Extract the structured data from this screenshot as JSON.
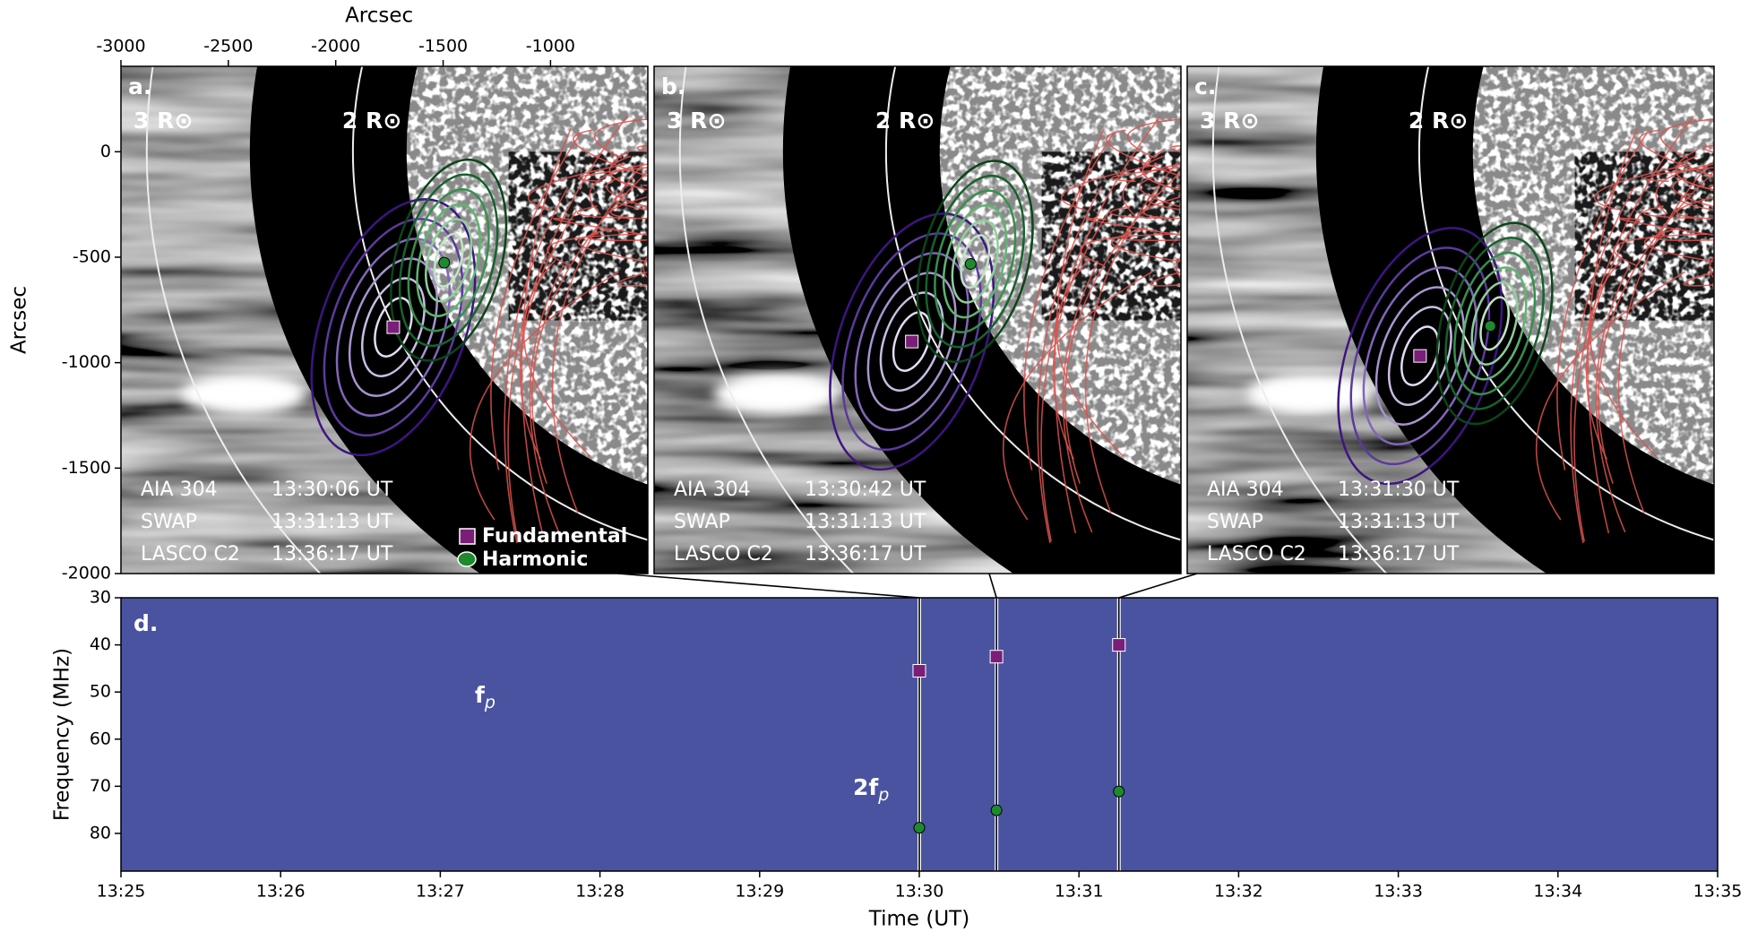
{
  "chart_data": [
    {
      "type": "image",
      "panel_label": "a.",
      "xlabel": "Arcsec",
      "ylabel": "Arcsec",
      "xlim": [
        -3000,
        -547
      ],
      "ylim": [
        -2000,
        405
      ],
      "xticks": [
        -3000,
        -2500,
        -2000,
        -1500,
        -1000
      ],
      "yticks": [
        0,
        -500,
        -1000,
        -1500,
        -2000
      ],
      "annotations": [
        "3 R⊙",
        "2 R⊙"
      ],
      "instruments": [
        [
          "AIA 304",
          "13:30:06 UT"
        ],
        [
          "SWAP",
          "13:31:13 UT"
        ],
        [
          "LASCO C2",
          "13:36:17 UT"
        ]
      ],
      "series": [
        {
          "name": "Fundamental",
          "color": "#7a1e78",
          "marker": "square",
          "x": [
            -1732
          ],
          "values": [
            -832
          ]
        },
        {
          "name": "Harmonic",
          "color": "#1e8a2e",
          "marker": "circle",
          "x": [
            -1495
          ],
          "values": [
            -526
          ]
        }
      ]
    },
    {
      "type": "image",
      "panel_label": "b.",
      "xlim": [
        -3000,
        -547
      ],
      "ylim": [
        -2000,
        405
      ],
      "annotations": [
        "3 R⊙",
        "2 R⊙"
      ],
      "instruments": [
        [
          "AIA 304",
          "13:30:42 UT"
        ],
        [
          "SWAP",
          "13:31:13 UT"
        ],
        [
          "LASCO C2",
          "13:36:17 UT"
        ]
      ],
      "series": [
        {
          "color": "#7a1e78",
          "marker": "square",
          "x": [
            -1800
          ],
          "values": [
            -900
          ]
        },
        {
          "color": "#1e8a2e",
          "marker": "circle",
          "x": [
            -1526
          ],
          "values": [
            -532
          ]
        }
      ]
    },
    {
      "type": "image",
      "panel_label": "c.",
      "xlim": [
        -3000,
        -547
      ],
      "ylim": [
        -2000,
        405
      ],
      "annotations": [
        "3 R⊙",
        "2 R⊙"
      ],
      "instruments": [
        [
          "AIA 304",
          "13:31:30 UT"
        ],
        [
          "SWAP",
          "13:31:13 UT"
        ],
        [
          "LASCO C2",
          "13:36:17 UT"
        ]
      ],
      "series": [
        {
          "color": "#7a1e78",
          "marker": "square",
          "x": [
            -1916
          ],
          "values": [
            -968
          ]
        },
        {
          "color": "#1e8a2e",
          "marker": "circle",
          "x": [
            -1589
          ],
          "values": [
            -826
          ]
        }
      ]
    },
    {
      "type": "spectrogram",
      "panel_label": "d.",
      "xlabel": "Time (UT)",
      "ylabel": "Frequency (MHz)",
      "xlim": [
        "13:25",
        "13:35"
      ],
      "xticks": [
        "13:25",
        "13:26",
        "13:27",
        "13:28",
        "13:29",
        "13:30",
        "13:31",
        "13:32",
        "13:33",
        "13:34",
        "13:35"
      ],
      "ylim": [
        30,
        88
      ],
      "y_inverted": true,
      "yticks": [
        30,
        40,
        50,
        60,
        70,
        80
      ],
      "annotations": [
        {
          "text": "f",
          "subscript": "p"
        },
        {
          "text": "2f",
          "subscript": "p"
        }
      ],
      "series": [
        {
          "color": "#7a1e78",
          "marker": "square",
          "x": [
            "13:30:00",
            "13:30:29",
            "13:31:15"
          ],
          "values": [
            45.5,
            42.5,
            40
          ]
        },
        {
          "color": "#1e8a2e",
          "marker": "circle",
          "x": [
            "13:30:00",
            "13:30:29",
            "13:31:15"
          ],
          "values": [
            78.8,
            75.1,
            71.1
          ]
        }
      ]
    }
  ]
}
